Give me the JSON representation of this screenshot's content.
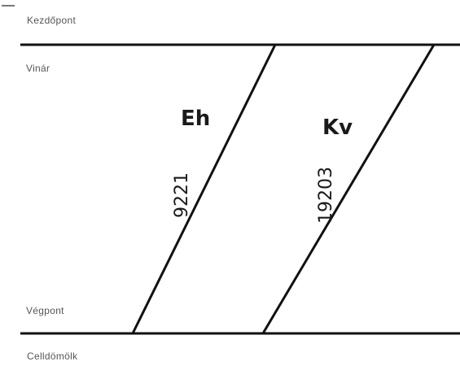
{
  "stations": {
    "start_label": "Kezdőpont",
    "upper_station": "Vinár",
    "end_label": "Végpont",
    "lower_station": "Celldömölk"
  },
  "trains": [
    {
      "name": "Eh",
      "number": "9221"
    },
    {
      "name": "Kv",
      "number": "19203"
    }
  ],
  "colors": {
    "line": "#111111",
    "label": "#555555"
  }
}
